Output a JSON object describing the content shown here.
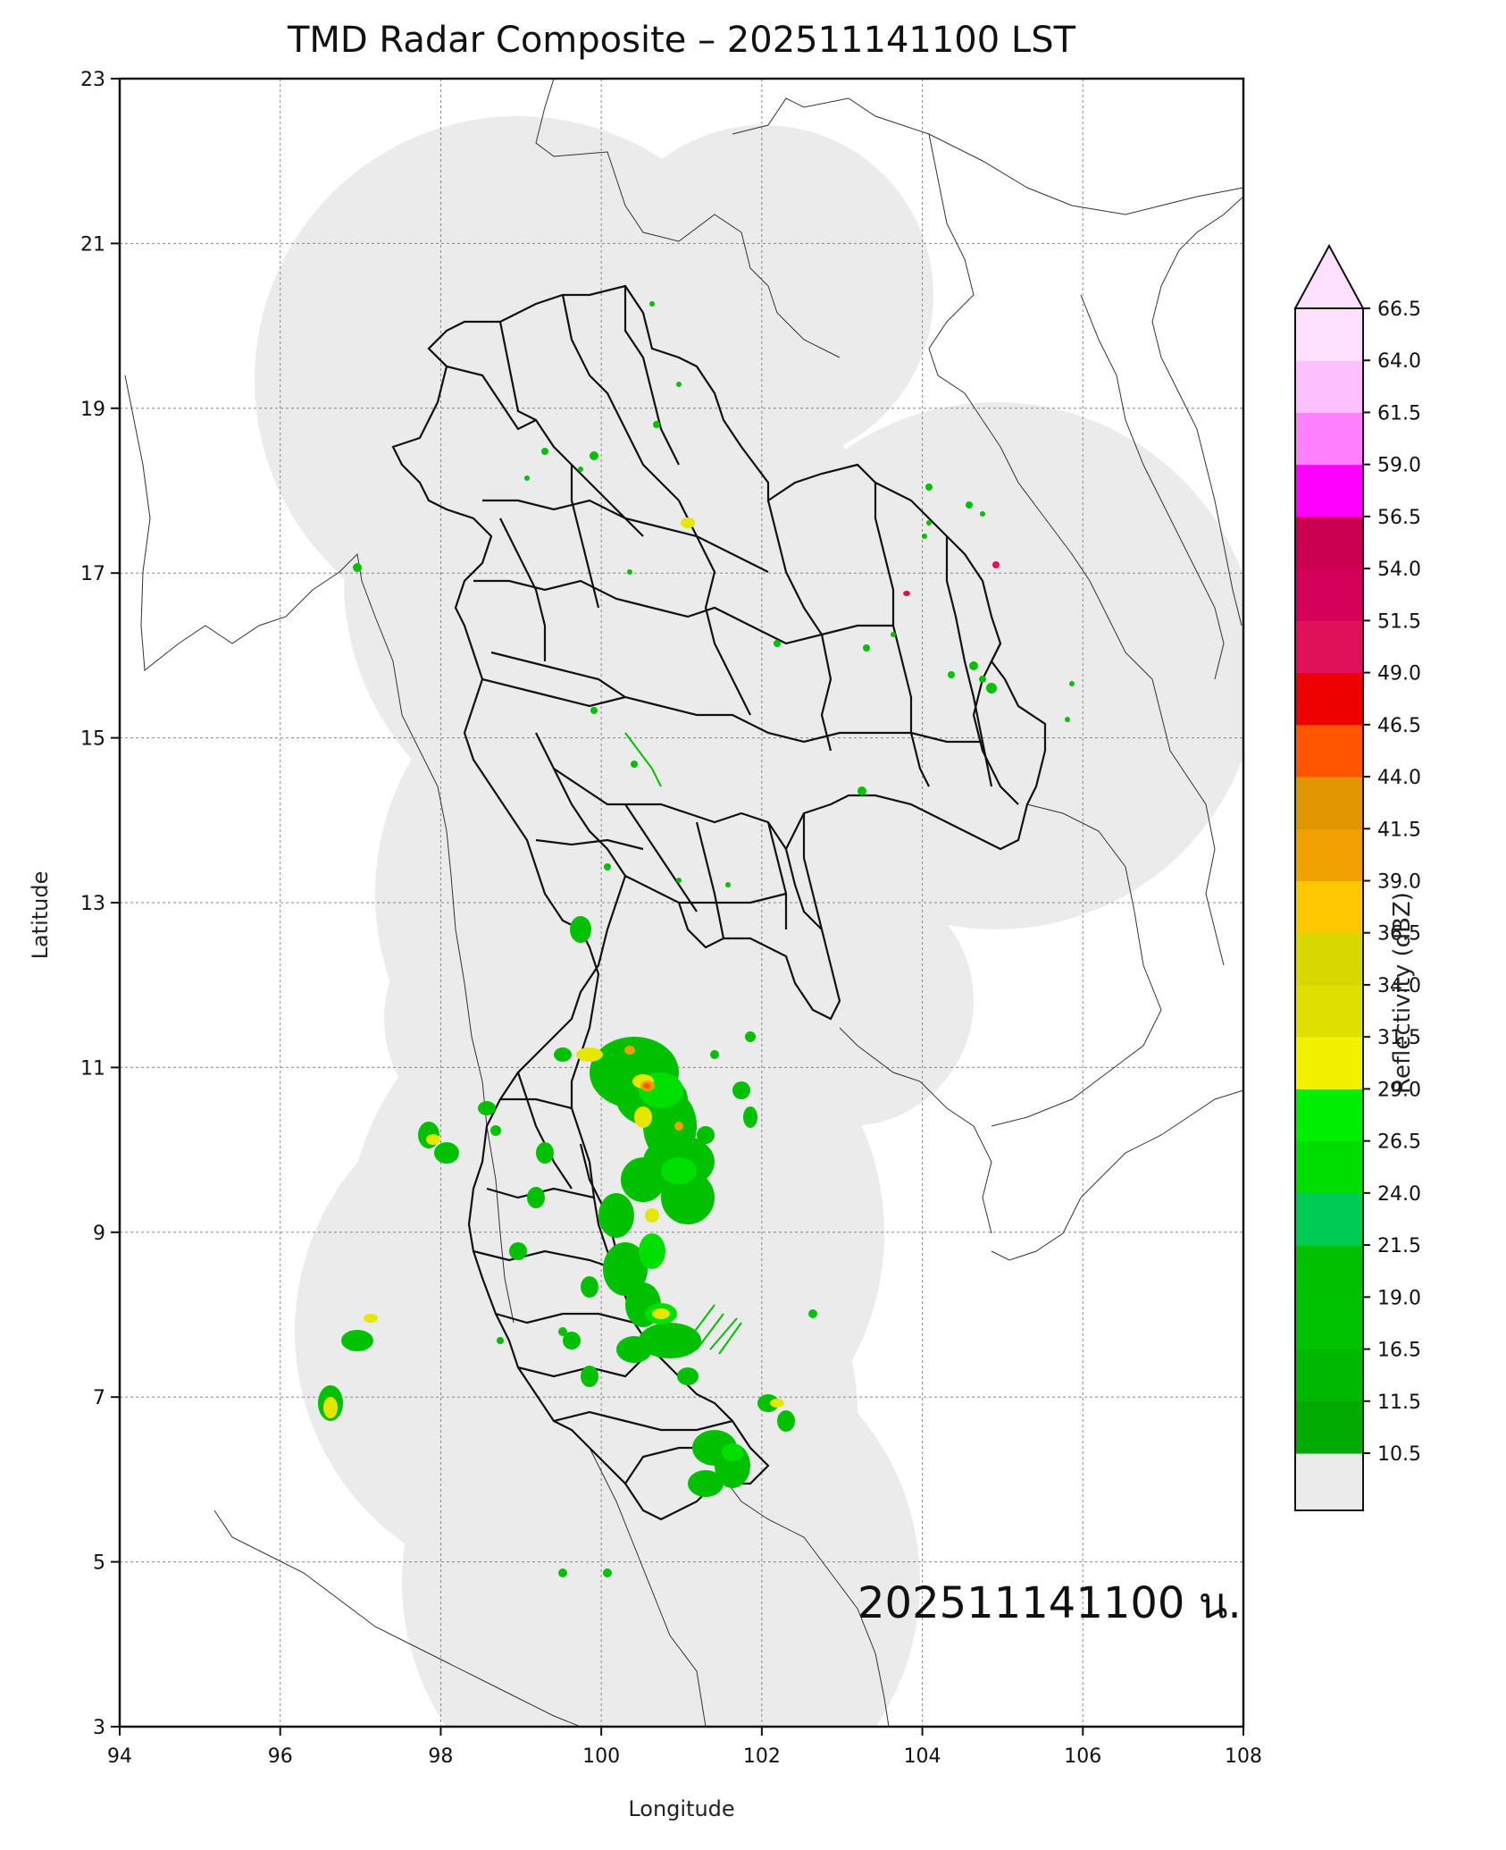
{
  "title": "TMD Radar Composite – 202511141100 LST",
  "xaxis": {
    "label": "Longitude",
    "ticks": [
      "94",
      "96",
      "98",
      "100",
      "102",
      "104",
      "106",
      "108"
    ],
    "range": [
      94,
      108
    ]
  },
  "yaxis": {
    "label": "Latitude",
    "ticks": [
      "3",
      "5",
      "7",
      "9",
      "11",
      "13",
      "15",
      "17",
      "19",
      "21",
      "23"
    ],
    "range": [
      3,
      23
    ]
  },
  "grid": true,
  "timestamp_label": "202511141100 น.",
  "colorbar": {
    "label": "Reflectivity (dBZ)",
    "ticks": [
      "10.5",
      "11.5",
      "16.5",
      "19.0",
      "21.5",
      "24.0",
      "26.5",
      "29.0",
      "31.5",
      "34.0",
      "36.5",
      "39.0",
      "41.5",
      "44.0",
      "46.5",
      "49.0",
      "51.5",
      "54.0",
      "56.5",
      "59.0",
      "61.5",
      "64.0",
      "66.5"
    ],
    "colors": [
      "#00aa00",
      "#00b800",
      "#00c200",
      "#00c000",
      "#00cc55",
      "#00dd00",
      "#00ee00",
      "#f2f200",
      "#e0e000",
      "#d8d800",
      "#ffc800",
      "#f0a000",
      "#e09600",
      "#ff5500",
      "#ee0000",
      "#e0105a",
      "#d4005a",
      "#cc0050",
      "#ff00ff",
      "#ff80ff",
      "#ffc0ff",
      "#ffe0ff"
    ],
    "coverage_color": "#ebebeb"
  }
}
